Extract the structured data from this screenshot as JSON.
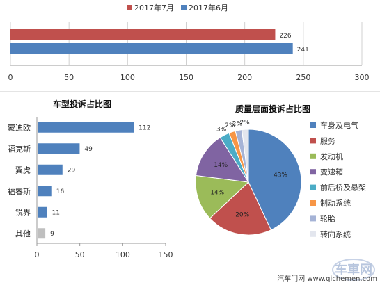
{
  "chart_data": [
    {
      "type": "bar",
      "orientation": "horizontal",
      "categories": [
        ""
      ],
      "series": [
        {
          "name": "2017年7月",
          "values": [
            226
          ],
          "color": "#c0504d"
        },
        {
          "name": "2017年6月",
          "values": [
            241
          ],
          "color": "#4f81bd"
        }
      ],
      "xlim": [
        0,
        300
      ],
      "xticks": [
        0,
        50,
        100,
        150,
        200,
        250,
        300
      ],
      "grid": "vertical",
      "legend_position": "top"
    },
    {
      "type": "bar",
      "orientation": "horizontal",
      "title": "车型投诉占比图",
      "categories": [
        "蒙迪欧",
        "福克斯",
        "翼虎",
        "福睿斯",
        "锐界",
        "其他"
      ],
      "values": [
        112,
        49,
        29,
        16,
        11,
        9
      ],
      "colors": [
        "#4f81bd",
        "#4f81bd",
        "#4f81bd",
        "#4f81bd",
        "#4f81bd",
        "#bfbfbf"
      ],
      "xlim": [
        0,
        150
      ],
      "xticks": [
        0,
        50,
        100,
        150
      ],
      "grid": "none"
    },
    {
      "type": "pie",
      "title": "质量层面投诉占比图",
      "labels": [
        "车身及电气",
        "服务",
        "发动机",
        "变速箱",
        "前后桥及悬架",
        "制动系统",
        "轮胎",
        "转向系统"
      ],
      "values": [
        43,
        20,
        14,
        14,
        3,
        2,
        2,
        2
      ],
      "value_labels": [
        "43%",
        "20%",
        "14%",
        "14%",
        "3%",
        "2%",
        "2%",
        "2%"
      ],
      "colors": [
        "#4f81bd",
        "#c0504d",
        "#9bbb59",
        "#8064a2",
        "#4bacc6",
        "#f79646",
        "#a5b3d6",
        "#e3e6ee"
      ],
      "legend_position": "right"
    }
  ],
  "watermark": {
    "logo_text": "车車网",
    "text": "汽车门网 www.qichemen.com"
  }
}
